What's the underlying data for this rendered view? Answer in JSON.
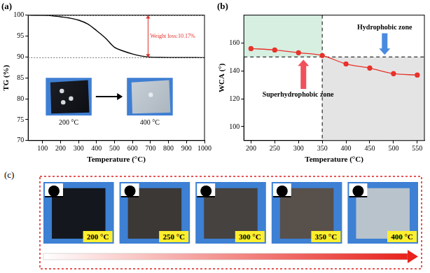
{
  "chart_data": [
    {
      "type": "line",
      "title": "(a)",
      "x": [
        30,
        100,
        150,
        200,
        250,
        300,
        350,
        400,
        450,
        500,
        550,
        600,
        650,
        700,
        750,
        800,
        900,
        1000
      ],
      "values": [
        100,
        99.95,
        99.85,
        99.6,
        99.3,
        98.8,
        97.9,
        96.3,
        94.5,
        92.3,
        91.4,
        90.7,
        90.2,
        89.95,
        89.88,
        89.85,
        89.84,
        89.83
      ],
      "color": "#000000",
      "xlabel": "Temperature (°C)",
      "ylabel": "TG (%)",
      "xlim": [
        20,
        1000
      ],
      "xticks": [
        100,
        200,
        300,
        400,
        500,
        600,
        700,
        800,
        900,
        1000
      ],
      "ylim": [
        70,
        100
      ],
      "yticks": [
        70,
        75,
        80,
        85,
        90,
        95,
        100
      ],
      "hlines": [
        100,
        89.83
      ],
      "annotations": [
        "Weight loss:10.17%"
      ],
      "insets": [
        {
          "label": "200 °C"
        },
        {
          "label": "400 °C"
        }
      ]
    },
    {
      "type": "line",
      "title": "(b)",
      "x": [
        200,
        250,
        300,
        350,
        400,
        450,
        500,
        550
      ],
      "values": [
        156,
        155,
        153,
        151,
        145,
        142,
        138,
        137
      ],
      "color": "#e8322b",
      "marker": "circle",
      "xlabel": "Temperature (°C)",
      "ylabel": "WCA (°)",
      "xlim": [
        185,
        565
      ],
      "xticks": [
        200,
        250,
        300,
        350,
        400,
        450,
        500,
        550
      ],
      "ylim": [
        90,
        180
      ],
      "yticks": [
        100,
        120,
        140,
        160
      ],
      "vline": 350,
      "hline": 150,
      "zones": [
        {
          "text": "Superhydrophobic zone",
          "color": "#d6efe1"
        },
        {
          "text": "Hydrophobic zone",
          "color": "#e4e4e4"
        }
      ]
    }
  ],
  "panel_c": {
    "title": "(c)",
    "photos": [
      {
        "label": "200 °C",
        "color": "#14171e"
      },
      {
        "label": "250 °C",
        "color": "#3b3836"
      },
      {
        "label": "300 °C",
        "color": "#46423f"
      },
      {
        "label": "350 °C",
        "color": "#57504b"
      },
      {
        "label": "400 °C",
        "color": "#b9c3cc"
      }
    ]
  }
}
